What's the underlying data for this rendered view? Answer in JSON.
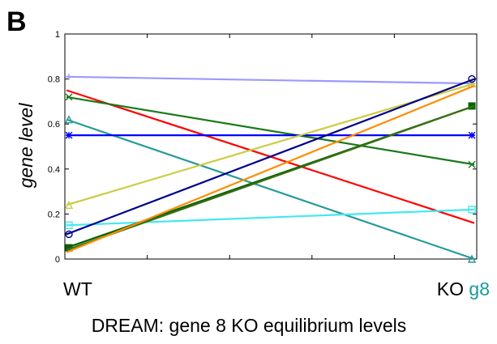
{
  "panel_letter": "B",
  "chart_data": {
    "type": "line",
    "ylabel": "gene level",
    "ylim": [
      0,
      1
    ],
    "yticks": [
      "0",
      "0.2",
      "0.4",
      "0.6",
      "0.8",
      "1"
    ],
    "x_labels": [
      {
        "parts": [
          {
            "text": "WT",
            "color": "#000000"
          }
        ]
      },
      {
        "parts": [
          {
            "text": "KO ",
            "color": "#000000"
          },
          {
            "text": "g8",
            "color": "#1a9a9a"
          }
        ]
      }
    ],
    "caption": "DREAM: gene 8 KO equilibrium levels",
    "series": [
      {
        "color": "#9a9aff",
        "marker": "plus",
        "values": [
          0.81,
          0.78
        ]
      },
      {
        "color": "#ff0000",
        "marker": "none",
        "values": [
          0.75,
          0.16
        ]
      },
      {
        "color": "#1a7a1a",
        "marker": "cross",
        "values": [
          0.72,
          0.42
        ]
      },
      {
        "color": "#2a9a9a",
        "marker": "triangle",
        "values": [
          0.62,
          0.0
        ]
      },
      {
        "color": "#0000ff",
        "marker": "star",
        "values": [
          0.55,
          0.55
        ]
      },
      {
        "color": "#cccc44",
        "marker": "triangle",
        "values": [
          0.24,
          0.78
        ]
      },
      {
        "color": "#44e8f0",
        "marker": "square-open",
        "values": [
          0.15,
          0.22
        ]
      },
      {
        "color": "#00008b",
        "marker": "circle",
        "values": [
          0.11,
          0.8
        ]
      },
      {
        "color": "#006400",
        "marker": "square",
        "values": [
          0.05,
          0.68
        ]
      },
      {
        "color": "#3c6e14",
        "marker": "none",
        "values": [
          0.04,
          0.68
        ]
      },
      {
        "color": "#ff8c00",
        "marker": "none",
        "values": [
          0.03,
          0.77
        ]
      }
    ]
  }
}
